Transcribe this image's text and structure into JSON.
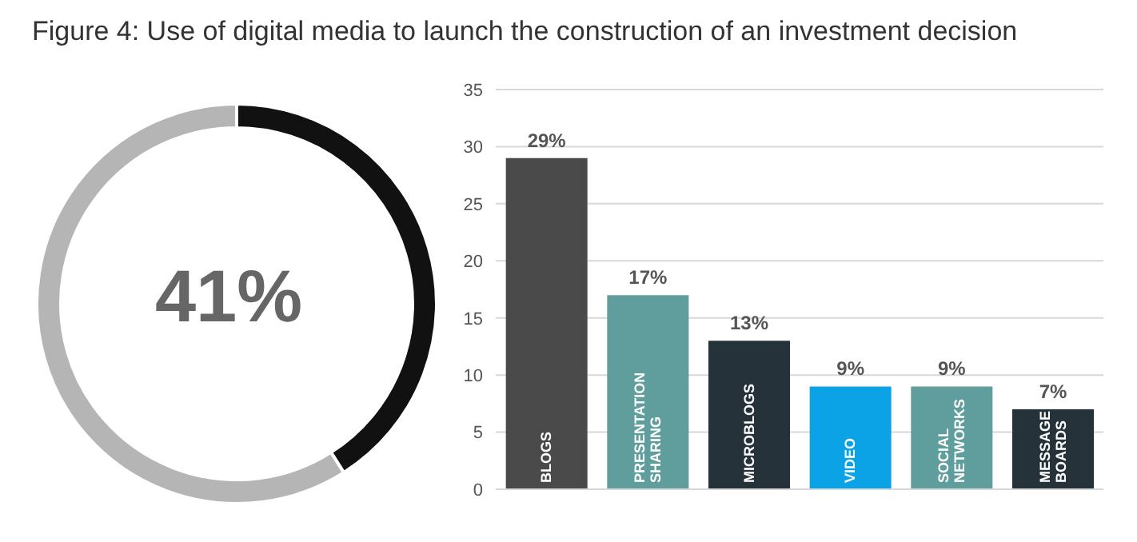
{
  "chart_data": [
    {
      "type": "donut",
      "title": "Figure 4: Use of digital media to launch the construction of an investment decision",
      "categories": [
        null,
        null
      ],
      "values": [
        41,
        59
      ],
      "colors": [
        "#111111",
        "#b5b5b5"
      ],
      "annotations": [
        "41%"
      ]
    },
    {
      "type": "bar",
      "categories": [
        "BLOGS",
        "PRESENTATION SHARING",
        "MICROBLOGS",
        "VIDEO",
        "SOCIAL NETWORKS",
        "MESSAGE BOARDS"
      ],
      "values": [
        29,
        17,
        13,
        9,
        9,
        7
      ],
      "colors": [
        "#4a4a4a",
        "#5f9e9d",
        "#25323a",
        "#0ba3e6",
        "#5f9e9d",
        "#25323a"
      ],
      "value_labels": [
        "29%",
        "17%",
        "13%",
        "9%",
        "9%",
        "7%"
      ],
      "ylim": [
        0,
        35
      ],
      "yticks": [
        0,
        5,
        10,
        15,
        20,
        25,
        30,
        35
      ],
      "grid": "y"
    }
  ]
}
